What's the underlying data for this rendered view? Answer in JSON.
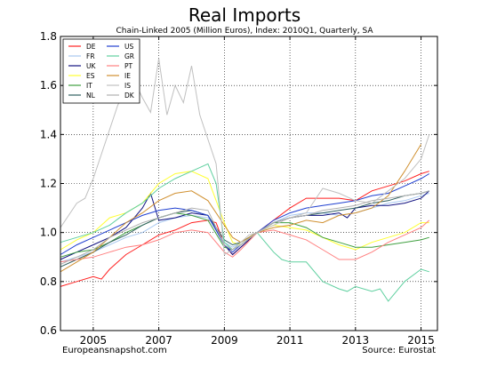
{
  "chart_data": {
    "type": "line",
    "title": "Real Imports",
    "subtitle": "Chain-Linked 2005 (Million Euros), Index: 2010Q1, Quarterly, SA",
    "xlabel": "",
    "ylabel": "",
    "xlim": [
      2004.0,
      2015.5
    ],
    "ylim": [
      0.6,
      1.8
    ],
    "x_ticks": [
      2005,
      2007,
      2009,
      2011,
      2013,
      2015
    ],
    "x_tick_labels": [
      "2005",
      "2007",
      "2009",
      "2011",
      "2013",
      "2015"
    ],
    "y_ticks": [
      0.6,
      0.8,
      1.0,
      1.2,
      1.4,
      1.6,
      1.8
    ],
    "y_tick_labels": [
      "0.6",
      "0.8",
      "1.0",
      "1.2",
      "1.4",
      "1.6",
      "1.8"
    ],
    "grid": true,
    "legend_position": "top-left",
    "legend_columns": 2,
    "source_left": "Europeansnapshot.com",
    "source_right": "Source: Eurostat",
    "series": [
      {
        "name": "DE",
        "color": "#ff2020",
        "x": [
          2004.0,
          2004.5,
          2005.0,
          2005.25,
          2005.5,
          2006.0,
          2006.5,
          2007.0,
          2007.5,
          2008.0,
          2008.5,
          2008.75,
          2009.0,
          2009.25,
          2009.5,
          2010.0,
          2010.5,
          2011.0,
          2011.5,
          2012.0,
          2012.5,
          2013.0,
          2013.5,
          2014.0,
          2014.5,
          2015.0,
          2015.25
        ],
        "y": [
          0.78,
          0.8,
          0.82,
          0.81,
          0.85,
          0.91,
          0.95,
          0.99,
          1.01,
          1.04,
          1.05,
          1.04,
          0.95,
          0.91,
          0.94,
          1.0,
          1.05,
          1.1,
          1.14,
          1.14,
          1.14,
          1.13,
          1.17,
          1.19,
          1.21,
          1.24,
          1.25
        ]
      },
      {
        "name": "FR",
        "color": "#a8c8f0",
        "x": [
          2004.0,
          2004.5,
          2005.0,
          2005.5,
          2006.0,
          2006.5,
          2007.0,
          2007.5,
          2008.0,
          2008.5,
          2009.0,
          2009.25,
          2009.5,
          2010.0,
          2010.5,
          2011.0,
          2011.5,
          2012.0,
          2012.5,
          2013.0,
          2013.5,
          2014.0,
          2014.5,
          2015.0,
          2015.25
        ],
        "y": [
          0.88,
          0.9,
          0.92,
          0.95,
          0.98,
          1.0,
          1.04,
          1.06,
          1.07,
          1.06,
          0.96,
          0.94,
          0.96,
          1.0,
          1.04,
          1.07,
          1.08,
          1.08,
          1.07,
          1.08,
          1.1,
          1.12,
          1.13,
          1.15,
          1.16
        ]
      },
      {
        "name": "UK",
        "color": "#101080",
        "x": [
          2004.0,
          2004.5,
          2005.0,
          2005.5,
          2006.0,
          2006.5,
          2006.75,
          2007.0,
          2007.5,
          2008.0,
          2008.5,
          2009.0,
          2009.25,
          2009.5,
          2010.0,
          2010.5,
          2011.0,
          2011.5,
          2012.0,
          2012.5,
          2012.75,
          2013.0,
          2013.5,
          2014.0,
          2014.5,
          2015.0,
          2015.25
        ],
        "y": [
          0.89,
          0.92,
          0.95,
          0.98,
          1.02,
          1.1,
          1.16,
          1.05,
          1.06,
          1.08,
          1.07,
          0.95,
          0.91,
          0.94,
          1.0,
          1.04,
          1.06,
          1.07,
          1.07,
          1.08,
          1.06,
          1.1,
          1.11,
          1.11,
          1.12,
          1.14,
          1.17
        ]
      },
      {
        "name": "ES",
        "color": "#ffff30",
        "x": [
          2004.0,
          2004.5,
          2005.0,
          2005.5,
          2006.0,
          2006.5,
          2007.0,
          2007.5,
          2008.0,
          2008.5,
          2009.0,
          2009.25,
          2009.5,
          2010.0,
          2010.5,
          2011.0,
          2011.5,
          2012.0,
          2012.5,
          2013.0,
          2013.5,
          2014.0,
          2014.5,
          2015.0,
          2015.25
        ],
        "y": [
          0.93,
          0.97,
          1.0,
          1.06,
          1.08,
          1.12,
          1.2,
          1.24,
          1.25,
          1.22,
          1.04,
          0.96,
          0.95,
          1.0,
          1.03,
          1.02,
          1.01,
          0.98,
          0.95,
          0.93,
          0.96,
          0.98,
          1.0,
          1.04,
          1.04
        ]
      },
      {
        "name": "IT",
        "color": "#40a040",
        "x": [
          2004.0,
          2004.5,
          2005.0,
          2005.5,
          2006.0,
          2006.5,
          2007.0,
          2007.5,
          2008.0,
          2008.5,
          2009.0,
          2009.25,
          2009.5,
          2010.0,
          2010.5,
          2011.0,
          2011.5,
          2012.0,
          2012.5,
          2013.0,
          2013.5,
          2014.0,
          2014.5,
          2015.0,
          2015.25
        ],
        "y": [
          0.9,
          0.92,
          0.93,
          0.96,
          1.0,
          1.03,
          1.06,
          1.08,
          1.07,
          1.05,
          0.94,
          0.93,
          0.96,
          1.0,
          1.04,
          1.04,
          1.02,
          0.98,
          0.96,
          0.94,
          0.94,
          0.95,
          0.96,
          0.97,
          0.98
        ]
      },
      {
        "name": "NL",
        "color": "#306060",
        "x": [
          2004.0,
          2004.5,
          2005.0,
          2005.5,
          2006.0,
          2006.5,
          2007.0,
          2007.5,
          2008.0,
          2008.5,
          2009.0,
          2009.25,
          2009.5,
          2010.0,
          2010.5,
          2011.0,
          2011.5,
          2012.0,
          2012.5,
          2013.0,
          2013.5,
          2014.0,
          2014.5,
          2015.0,
          2015.25
        ],
        "y": [
          0.86,
          0.89,
          0.92,
          0.96,
          0.99,
          1.03,
          1.06,
          1.08,
          1.09,
          1.07,
          0.97,
          0.95,
          0.96,
          1.0,
          1.04,
          1.06,
          1.07,
          1.08,
          1.09,
          1.1,
          1.12,
          1.13,
          1.15,
          1.16,
          1.17
        ]
      },
      {
        "name": "US",
        "color": "#2040d0",
        "x": [
          2004.0,
          2004.5,
          2005.0,
          2005.5,
          2006.0,
          2006.5,
          2007.0,
          2007.5,
          2008.0,
          2008.5,
          2009.0,
          2009.25,
          2009.5,
          2010.0,
          2010.5,
          2011.0,
          2011.5,
          2012.0,
          2012.5,
          2013.0,
          2013.5,
          2014.0,
          2014.5,
          2015.0,
          2015.25
        ],
        "y": [
          0.91,
          0.95,
          0.98,
          1.01,
          1.04,
          1.07,
          1.09,
          1.1,
          1.09,
          1.07,
          0.95,
          0.92,
          0.95,
          1.0,
          1.05,
          1.08,
          1.1,
          1.11,
          1.12,
          1.13,
          1.15,
          1.16,
          1.19,
          1.22,
          1.24
        ]
      },
      {
        "name": "GR",
        "color": "#60d0a0",
        "x": [
          2004.0,
          2004.5,
          2005.0,
          2005.5,
          2006.0,
          2006.5,
          2007.0,
          2007.5,
          2008.0,
          2008.5,
          2008.75,
          2009.0,
          2009.25,
          2009.5,
          2010.0,
          2010.5,
          2010.75,
          2011.0,
          2011.5,
          2012.0,
          2012.5,
          2012.75,
          2013.0,
          2013.5,
          2013.75,
          2014.0,
          2014.5,
          2015.0,
          2015.25
        ],
        "y": [
          0.96,
          0.98,
          1.0,
          1.03,
          1.08,
          1.12,
          1.18,
          1.22,
          1.25,
          1.28,
          1.2,
          0.96,
          0.93,
          0.95,
          1.0,
          0.92,
          0.89,
          0.88,
          0.88,
          0.8,
          0.77,
          0.76,
          0.78,
          0.76,
          0.77,
          0.72,
          0.8,
          0.85,
          0.84
        ]
      },
      {
        "name": "PT",
        "color": "#ff8080",
        "x": [
          2004.0,
          2004.5,
          2005.0,
          2005.5,
          2006.0,
          2006.5,
          2007.0,
          2007.5,
          2008.0,
          2008.5,
          2009.0,
          2009.25,
          2009.5,
          2010.0,
          2010.5,
          2011.0,
          2011.5,
          2012.0,
          2012.5,
          2013.0,
          2013.5,
          2014.0,
          2014.5,
          2015.0,
          2015.25
        ],
        "y": [
          0.88,
          0.89,
          0.9,
          0.92,
          0.94,
          0.95,
          0.97,
          1.0,
          1.01,
          1.0,
          0.92,
          0.9,
          0.93,
          1.0,
          1.01,
          0.99,
          0.97,
          0.93,
          0.89,
          0.89,
          0.92,
          0.96,
          0.99,
          1.02,
          1.05
        ]
      },
      {
        "name": "IE",
        "color": "#d09030",
        "x": [
          2004.0,
          2004.5,
          2005.0,
          2005.5,
          2006.0,
          2006.5,
          2007.0,
          2007.5,
          2008.0,
          2008.5,
          2009.0,
          2009.25,
          2009.5,
          2010.0,
          2010.5,
          2011.0,
          2011.5,
          2012.0,
          2012.5,
          2013.0,
          2013.5,
          2014.0,
          2014.5,
          2015.0
        ],
        "y": [
          0.84,
          0.88,
          0.92,
          0.98,
          1.04,
          1.08,
          1.13,
          1.16,
          1.17,
          1.13,
          1.03,
          0.98,
          0.96,
          1.0,
          1.02,
          1.03,
          1.05,
          1.04,
          1.07,
          1.08,
          1.1,
          1.15,
          1.25,
          1.36
        ]
      },
      {
        "name": "IS",
        "color": "#c0c0c0",
        "x": [
          2004.0,
          2004.25,
          2004.5,
          2004.75,
          2005.0,
          2005.25,
          2005.5,
          2005.75,
          2006.0,
          2006.25,
          2006.5,
          2006.75,
          2007.0,
          2007.25,
          2007.5,
          2007.75,
          2008.0,
          2008.25,
          2008.5,
          2008.75,
          2009.0,
          2009.25,
          2009.5,
          2009.75,
          2010.0,
          2010.5,
          2011.0,
          2011.5,
          2012.0,
          2012.5,
          2013.0,
          2013.5,
          2014.0,
          2014.5,
          2015.0,
          2015.25
        ],
        "y": [
          1.02,
          1.07,
          1.12,
          1.14,
          1.22,
          1.32,
          1.42,
          1.52,
          1.58,
          1.62,
          1.55,
          1.49,
          1.71,
          1.48,
          1.6,
          1.53,
          1.68,
          1.48,
          1.38,
          1.28,
          0.91,
          0.93,
          0.96,
          0.99,
          1.0,
          1.03,
          1.06,
          1.08,
          1.18,
          1.16,
          1.13,
          1.12,
          1.17,
          1.22,
          1.3,
          1.4
        ]
      },
      {
        "name": "DK",
        "color": "#b0b0b0",
        "x": [
          2004.0,
          2004.5,
          2005.0,
          2005.5,
          2006.0,
          2006.5,
          2007.0,
          2007.5,
          2008.0,
          2008.5,
          2009.0,
          2009.25,
          2009.5,
          2010.0,
          2010.5,
          2011.0,
          2011.5,
          2012.0,
          2012.5,
          2013.0,
          2013.5,
          2014.0,
          2014.5,
          2015.0,
          2015.25
        ],
        "y": [
          0.87,
          0.9,
          0.93,
          0.98,
          1.01,
          1.04,
          1.06,
          1.08,
          1.1,
          1.09,
          0.95,
          0.93,
          0.95,
          1.0,
          1.04,
          1.06,
          1.07,
          1.09,
          1.1,
          1.11,
          1.13,
          1.14,
          1.15,
          1.16,
          1.17
        ]
      }
    ]
  }
}
